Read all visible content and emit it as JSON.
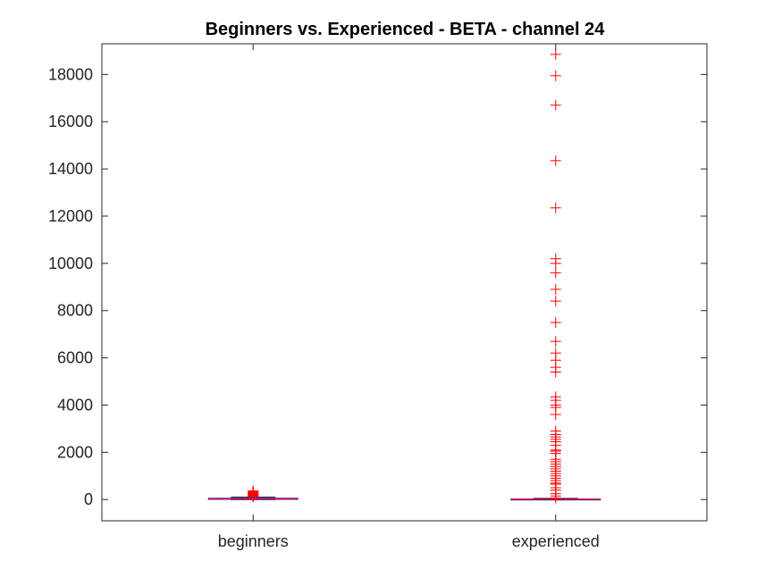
{
  "chart_data": {
    "type": "box",
    "title": "Beginners vs. Experienced - BETA - channel 24",
    "xlabel": "",
    "ylabel": "",
    "categories": [
      "beginners",
      "experienced"
    ],
    "ylim": [
      -900,
      19300
    ],
    "yticks": [
      0,
      2000,
      4000,
      6000,
      8000,
      10000,
      12000,
      14000,
      16000,
      18000
    ],
    "ytick_labels": [
      "0",
      "2000",
      "4000",
      "6000",
      "8000",
      "10000",
      "12000",
      "14000",
      "16000",
      "18000"
    ],
    "grid": false,
    "legend": "none",
    "colors": {
      "box": "#0000ff",
      "median": "#ff0000",
      "outlier": "#ff0000",
      "whisker": "#000000"
    },
    "boxes": [
      {
        "category": "beginners",
        "q1": 10,
        "median": 25,
        "q3": 50,
        "whisker_low": 0,
        "whisker_high": 100,
        "outliers": [
          110,
          130,
          150,
          170,
          190,
          210,
          230,
          250,
          270,
          300,
          330,
          370
        ]
      },
      {
        "category": "experienced",
        "q1": 2,
        "median": 8,
        "q3": 20,
        "whisker_low": 0,
        "whisker_high": 45,
        "outliers": [
          60,
          150,
          250,
          400,
          500,
          650,
          700,
          800,
          900,
          1000,
          1100,
          1200,
          1300,
          1400,
          1500,
          1600,
          1700,
          1950,
          2050,
          2100,
          2300,
          2450,
          2550,
          2650,
          2750,
          2900,
          3600,
          3900,
          4000,
          4200,
          4350,
          5400,
          5600,
          5900,
          6200,
          6700,
          7500,
          8400,
          8900,
          9600,
          10000,
          10200,
          12350,
          14350,
          16700,
          17950,
          18850
        ]
      }
    ]
  }
}
